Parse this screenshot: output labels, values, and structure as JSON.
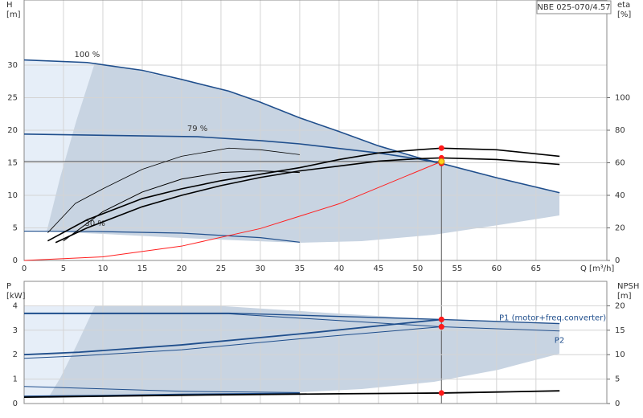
{
  "chart_data": [
    {
      "type": "line",
      "title": "NBE 025-070/4.57",
      "ylabel": [
        "H",
        "[m]"
      ],
      "y2label": [
        "eta",
        "[%]"
      ],
      "xlabel": "Q [m³/h]",
      "xlim": [
        0,
        74
      ],
      "xticks": [
        0,
        5,
        10,
        15,
        20,
        25,
        30,
        35,
        40,
        45,
        50,
        55,
        60,
        65
      ],
      "ylim": [
        0,
        40
      ],
      "yticks": [
        0,
        5,
        10,
        15,
        20,
        25,
        30
      ],
      "y2lim": [
        0,
        160
      ],
      "y2ticks": [
        0,
        20,
        40,
        60,
        80,
        100
      ],
      "grid": true,
      "duty_point": {
        "q": 53,
        "h": 15.2
      },
      "series": [
        {
          "label": "100 %",
          "color": "#1f4e8c",
          "width": 1.6,
          "x": [
            0,
            8,
            15,
            20,
            26,
            30,
            35,
            40,
            45,
            50,
            53,
            60,
            68
          ],
          "values": [
            30.8,
            30.4,
            29.2,
            27.8,
            26.0,
            24.3,
            21.9,
            19.8,
            17.6,
            15.8,
            14.9,
            12.7,
            10.4
          ]
        },
        {
          "label": "79 %",
          "color": "#1f4e8c",
          "width": 1.6,
          "x": [
            0,
            22,
            30,
            35,
            40,
            45,
            50,
            53
          ],
          "values": [
            19.4,
            19.0,
            18.4,
            17.9,
            17.2,
            16.5,
            15.6,
            14.9
          ]
        },
        {
          "label": "30 %",
          "color": "#1f4e8c",
          "width": 1.2,
          "x": [
            0,
            9,
            20,
            30,
            35
          ],
          "values": [
            4.5,
            4.45,
            4.2,
            3.5,
            2.8
          ]
        },
        {
          "color": "#ff2020",
          "width": 1,
          "x": [
            0,
            10,
            20,
            30,
            40,
            53
          ],
          "values": [
            0,
            0.55,
            2.2,
            4.9,
            8.7,
            15.2
          ]
        },
        {
          "axis": "y2",
          "color": "#000000",
          "width": 1.6,
          "x": [
            3,
            8,
            15,
            20,
            25,
            30,
            35,
            40,
            45,
            50,
            53,
            60,
            68
          ],
          "values": [
            12,
            25,
            38,
            44,
            49,
            53,
            57,
            62,
            66,
            68,
            69,
            68,
            64
          ]
        },
        {
          "axis": "y2",
          "color": "#000000",
          "width": 1.6,
          "x": [
            4,
            8,
            15,
            20,
            25,
            30,
            35,
            40,
            45,
            50,
            53,
            60,
            68
          ],
          "values": [
            11,
            20,
            33,
            40,
            46,
            51,
            55,
            58,
            61,
            62.5,
            63,
            62,
            59
          ]
        },
        {
          "axis": "y2",
          "color": "#000000",
          "width": 0.8,
          "x": [
            3,
            6.5,
            10,
            15,
            20,
            26,
            30,
            35
          ],
          "values": [
            17,
            35,
            44,
            56,
            64,
            69,
            68,
            65
          ]
        },
        {
          "axis": "y2",
          "color": "#000000",
          "width": 1,
          "x": [
            5,
            10,
            15,
            20,
            25,
            30,
            35
          ],
          "values": [
            12,
            30,
            42,
            50,
            54,
            55,
            54
          ]
        }
      ]
    },
    {
      "type": "line",
      "ylabel": [
        "P",
        "[kW]"
      ],
      "y2label": [
        "NPSH",
        "[m]"
      ],
      "xlim": [
        0,
        74
      ],
      "xticks": [
        0,
        5,
        10,
        15,
        20,
        25,
        30,
        35,
        40,
        45,
        50,
        55,
        60,
        65
      ],
      "xtick_labels": false,
      "ylim": [
        0,
        5
      ],
      "yticks": [
        0,
        1,
        2,
        3,
        4
      ],
      "y2lim": [
        0,
        25
      ],
      "y2ticks": [
        0,
        5,
        10,
        15,
        20
      ],
      "grid": true,
      "duty_point": {
        "q": 53
      },
      "series": [
        {
          "name": "P1 (motor+freq.converter)",
          "color": "#1f4e8c",
          "width": 1.4,
          "x": [
            0,
            26,
            53,
            68
          ],
          "values": [
            3.7,
            3.7,
            3.44,
            3.27
          ]
        },
        {
          "name": "P2",
          "color": "#1f4e8c",
          "width": 1,
          "x": [
            0,
            26,
            53,
            68
          ],
          "values": [
            3.67,
            3.67,
            3.14,
            2.97
          ]
        },
        {
          "color": "#1f4e8c",
          "width": 1.8,
          "x": [
            0,
            7,
            20,
            35,
            53
          ],
          "values": [
            2.0,
            2.1,
            2.4,
            2.85,
            3.44
          ]
        },
        {
          "color": "#1f4e8c",
          "width": 1,
          "x": [
            0,
            7,
            20,
            35,
            53
          ],
          "values": [
            1.85,
            1.95,
            2.2,
            2.65,
            3.14
          ]
        },
        {
          "color": "#1f4e8c",
          "width": 1,
          "x": [
            0,
            10,
            20,
            35
          ],
          "values": [
            0.7,
            0.6,
            0.5,
            0.45
          ]
        },
        {
          "color": "#1f4e8c",
          "width": 1.4,
          "x": [
            0,
            10,
            20,
            35
          ],
          "values": [
            0.3,
            0.33,
            0.38,
            0.42
          ]
        },
        {
          "axis": "y2",
          "color": "#000000",
          "width": 1.8,
          "x": [
            0,
            10,
            20,
            30,
            40,
            53,
            60,
            68
          ],
          "values": [
            1.3,
            1.5,
            1.7,
            1.85,
            2.0,
            2.15,
            2.35,
            2.6
          ]
        }
      ]
    }
  ]
}
